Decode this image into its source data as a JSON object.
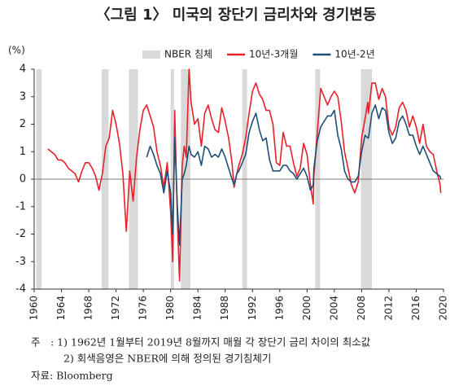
{
  "chart_data": {
    "type": "line",
    "title": "〈그림 1〉 미국의 장단기 금리차와 경기변동",
    "y_unit_label": "(%)",
    "recession_label": "NBER 침체",
    "recession_color": "#d9d9d9",
    "recessions": [
      {
        "start": 1960.3,
        "end": 1961.1
      },
      {
        "start": 1969.9,
        "end": 1970.9
      },
      {
        "start": 1973.9,
        "end": 1975.2
      },
      {
        "start": 1980.0,
        "end": 1980.5
      },
      {
        "start": 1981.5,
        "end": 1982.9
      },
      {
        "start": 1990.5,
        "end": 1991.2
      },
      {
        "start": 2001.2,
        "end": 2001.9
      },
      {
        "start": 2007.9,
        "end": 2009.5
      }
    ],
    "x": [
      1962,
      1962.5,
      1963,
      1963.5,
      1964,
      1964.5,
      1965,
      1965.5,
      1966,
      1966.5,
      1967,
      1967.5,
      1968,
      1968.5,
      1969,
      1969.5,
      1970,
      1970.5,
      1971,
      1971.5,
      1972,
      1972.5,
      1973,
      1973.5,
      1974,
      1974.5,
      1975,
      1975.5,
      1976,
      1976.5,
      1977,
      1977.5,
      1978,
      1978.5,
      1979,
      1979.5,
      1980,
      1980.3,
      1980.6,
      1981,
      1981.3,
      1981.7,
      1982,
      1982.3,
      1982.7,
      1983,
      1983.5,
      1984,
      1984.5,
      1985,
      1985.5,
      1986,
      1986.5,
      1987,
      1987.5,
      1988,
      1988.5,
      1989,
      1989.3,
      1989.7,
      1990,
      1990.5,
      1991,
      1991.5,
      1992,
      1992.5,
      1993,
      1993.5,
      1994,
      1994.5,
      1995,
      1995.5,
      1996,
      1996.5,
      1997,
      1997.5,
      1998,
      1998.5,
      1999,
      1999.5,
      2000,
      2000.5,
      2000.9,
      2001,
      2001.5,
      2002,
      2002.5,
      2003,
      2003.5,
      2004,
      2004.5,
      2005,
      2005.5,
      2006,
      2006.5,
      2007,
      2007.5,
      2008,
      2008.5,
      2008.9,
      2009,
      2009.5,
      2010,
      2010.5,
      2011,
      2011.5,
      2012,
      2012.5,
      2013,
      2013.5,
      2014,
      2014.5,
      2015,
      2015.5,
      2016,
      2016.5,
      2017,
      2017.5,
      2018,
      2018.5,
      2019,
      2019.5,
      2019.6
    ],
    "series": [
      {
        "name": "10년-3개월",
        "color": "#e8202a",
        "values": [
          1.1,
          1.0,
          0.9,
          0.7,
          0.7,
          0.6,
          0.4,
          0.3,
          0.2,
          -0.1,
          0.3,
          0.6,
          0.6,
          0.4,
          0.1,
          -0.4,
          0.2,
          1.2,
          1.5,
          2.5,
          2.0,
          1.3,
          0.2,
          -1.9,
          0.3,
          -0.8,
          0.8,
          1.8,
          2.5,
          2.7,
          2.3,
          1.9,
          1.0,
          0.5,
          -0.3,
          0.6,
          -1.2,
          -3.0,
          2.5,
          -1.5,
          -3.7,
          0.5,
          1.2,
          0.8,
          4.0,
          2.8,
          2.0,
          2.2,
          1.2,
          2.4,
          2.7,
          2.2,
          1.8,
          1.7,
          2.6,
          2.1,
          1.5,
          0.6,
          -0.3,
          0.2,
          0.5,
          0.9,
          1.5,
          2.4,
          3.2,
          3.5,
          3.1,
          2.9,
          2.5,
          2.5,
          2.0,
          0.6,
          0.5,
          1.7,
          1.2,
          1.2,
          0.6,
          0.1,
          0.4,
          1.3,
          0.9,
          -0.2,
          -0.9,
          0.1,
          1.7,
          3.3,
          3.0,
          2.7,
          3.0,
          3.2,
          3.0,
          2.1,
          1.0,
          0.4,
          -0.2,
          -0.5,
          -0.1,
          1.5,
          2.2,
          2.8,
          2.4,
          3.5,
          3.5,
          2.9,
          3.3,
          3.0,
          1.9,
          1.6,
          1.9,
          2.6,
          2.8,
          2.5,
          1.9,
          2.3,
          1.9,
          1.3,
          2.0,
          1.2,
          1.0,
          0.9,
          0.3,
          -0.2,
          -0.5
        ]
      },
      {
        "name": "10년-2년",
        "color": "#1f4e79",
        "values": [
          null,
          null,
          null,
          null,
          null,
          null,
          null,
          null,
          null,
          null,
          null,
          null,
          null,
          null,
          null,
          null,
          null,
          null,
          null,
          null,
          null,
          null,
          null,
          null,
          null,
          null,
          null,
          null,
          null,
          0.8,
          1.2,
          0.9,
          0.5,
          0.2,
          -0.5,
          0.3,
          -0.5,
          -2.0,
          1.5,
          -1.0,
          -2.4,
          0,
          0.2,
          0.5,
          1.2,
          0.9,
          0.8,
          1.0,
          0.5,
          1.2,
          1.1,
          0.8,
          0.9,
          0.8,
          1.1,
          0.8,
          0.4,
          0,
          -0.2,
          0.2,
          0.3,
          0.6,
          0.9,
          1.7,
          2.1,
          2.4,
          1.8,
          1.4,
          1.5,
          0.7,
          0.3,
          0.3,
          0.3,
          0.5,
          0.5,
          0.3,
          0.2,
          0.0,
          0.2,
          0.4,
          0.1,
          -0.4,
          -0.2,
          0.4,
          1.4,
          1.9,
          2.1,
          2.3,
          2.3,
          2.5,
          1.6,
          1.1,
          0.3,
          0.0,
          -0.1,
          -0.1,
          0.1,
          1.0,
          1.6,
          1.5,
          1.5,
          2.4,
          2.7,
          2.2,
          2.6,
          2.5,
          1.7,
          1.3,
          1.5,
          2.1,
          2.3,
          2.0,
          1.6,
          1.6,
          1.2,
          0.9,
          1.2,
          0.9,
          0.6,
          0.3,
          0.2,
          0.1,
          0.0
        ]
      }
    ],
    "xlim": [
      1960,
      2020
    ],
    "xticks": [
      1960,
      1964,
      1968,
      1972,
      1976,
      1980,
      1984,
      1988,
      1992,
      1996,
      2000,
      2004,
      2008,
      2012,
      2016,
      2020
    ],
    "ylim": [
      -4,
      4
    ],
    "yticks": [
      -4,
      -3,
      -2,
      -1,
      0,
      1,
      2,
      3,
      4
    ],
    "notes": [
      "주　: 1) 1962년 1월부터 2019년 8월까지 매월 각 장단기 금리 차이의 최소값",
      "2) 회색음영은 NBER에 의해 정의된 경기침체기",
      "자료: Bloomberg"
    ]
  }
}
